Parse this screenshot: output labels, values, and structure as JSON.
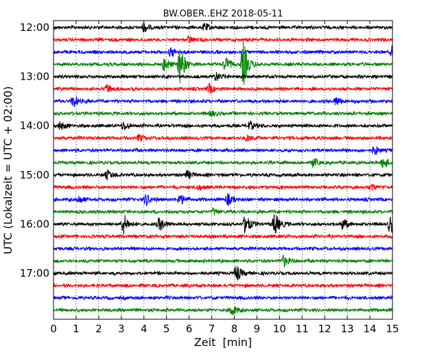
{
  "chart_data": {
    "type": "line",
    "title": "BW.OBER..EHZ 2018-05-11",
    "xlabel": "Zeit  [min]",
    "ylabel": "UTC (Lokalzeit = UTC + 02:00)",
    "xlim": [
      0,
      15
    ],
    "x_ticks": [
      "0",
      "1",
      "2",
      "3",
      "4",
      "5",
      "6",
      "7",
      "8",
      "9",
      "10",
      "11",
      "12",
      "13",
      "14",
      "15"
    ],
    "y_tick_labels": [
      "12:00",
      "13:00",
      "14:00",
      "15:00",
      "16:00",
      "17:00"
    ],
    "grid": "vertical dotted",
    "trace_colors": [
      "#000000",
      "#ff0000",
      "#0000ff",
      "#008000"
    ],
    "traces": [
      {
        "start": "12:00",
        "color": "#000000",
        "events": [
          [
            4.0,
            0.3
          ],
          [
            6.7,
            0.25
          ]
        ]
      },
      {
        "start": "12:15",
        "color": "#ff0000",
        "events": [
          [
            6.0,
            0.2
          ]
        ]
      },
      {
        "start": "12:30",
        "color": "#0000ff",
        "events": [
          [
            5.2,
            0.3
          ],
          [
            15.0,
            0.4
          ]
        ]
      },
      {
        "start": "12:45",
        "color": "#008000",
        "events": [
          [
            4.9,
            0.5
          ],
          [
            5.6,
            1.3
          ],
          [
            7.6,
            0.5
          ],
          [
            8.4,
            1.6
          ]
        ]
      },
      {
        "start": "13:00",
        "color": "#000000",
        "events": [
          [
            7.2,
            0.3
          ]
        ]
      },
      {
        "start": "13:15",
        "color": "#ff0000",
        "events": [
          [
            2.4,
            0.3
          ],
          [
            6.9,
            0.3
          ]
        ]
      },
      {
        "start": "13:30",
        "color": "#0000ff",
        "events": [
          [
            0.9,
            0.4
          ],
          [
            12.5,
            0.3
          ]
        ]
      },
      {
        "start": "13:45",
        "color": "#008000",
        "events": [
          [
            7.0,
            0.2
          ]
        ]
      },
      {
        "start": "14:00",
        "color": "#000000",
        "events": [
          [
            0.3,
            0.3
          ],
          [
            3.1,
            0.3
          ],
          [
            8.7,
            0.3
          ]
        ]
      },
      {
        "start": "14:15",
        "color": "#ff0000",
        "events": [
          [
            3.8,
            0.2
          ],
          [
            8.6,
            0.2
          ]
        ]
      },
      {
        "start": "14:30",
        "color": "#0000ff",
        "events": [
          [
            14.2,
            0.3
          ]
        ]
      },
      {
        "start": "14:45",
        "color": "#008000",
        "events": [
          [
            11.5,
            0.3
          ],
          [
            14.6,
            0.4
          ]
        ]
      },
      {
        "start": "15:00",
        "color": "#000000",
        "events": [
          [
            2.4,
            0.3
          ],
          [
            5.9,
            0.3
          ]
        ]
      },
      {
        "start": "15:15",
        "color": "#ff0000",
        "events": [
          [
            6.4,
            0.2
          ],
          [
            14.1,
            0.2
          ]
        ]
      },
      {
        "start": "15:30",
        "color": "#0000ff",
        "events": [
          [
            1.1,
            0.3
          ],
          [
            4.1,
            0.4
          ],
          [
            5.6,
            0.4
          ],
          [
            7.7,
            0.4
          ]
        ]
      },
      {
        "start": "15:45",
        "color": "#008000",
        "events": [
          [
            7.1,
            0.2
          ]
        ]
      },
      {
        "start": "16:00",
        "color": "#000000",
        "events": [
          [
            3.1,
            0.7
          ],
          [
            4.7,
            0.5
          ],
          [
            8.5,
            0.7
          ],
          [
            9.8,
            0.8
          ],
          [
            12.8,
            0.4
          ],
          [
            14.9,
            0.6
          ]
        ]
      },
      {
        "start": "16:15",
        "color": "#ff0000",
        "events": []
      },
      {
        "start": "16:30",
        "color": "#0000ff",
        "events": []
      },
      {
        "start": "16:45",
        "color": "#008000",
        "events": [
          [
            10.2,
            0.4
          ]
        ]
      },
      {
        "start": "17:00",
        "color": "#000000",
        "events": [
          [
            8.1,
            0.6
          ]
        ]
      },
      {
        "start": "17:15",
        "color": "#ff0000",
        "events": []
      },
      {
        "start": "17:30",
        "color": "#0000ff",
        "events": []
      },
      {
        "start": "17:45",
        "color": "#008000",
        "events": [
          [
            7.9,
            0.4
          ]
        ]
      }
    ]
  }
}
